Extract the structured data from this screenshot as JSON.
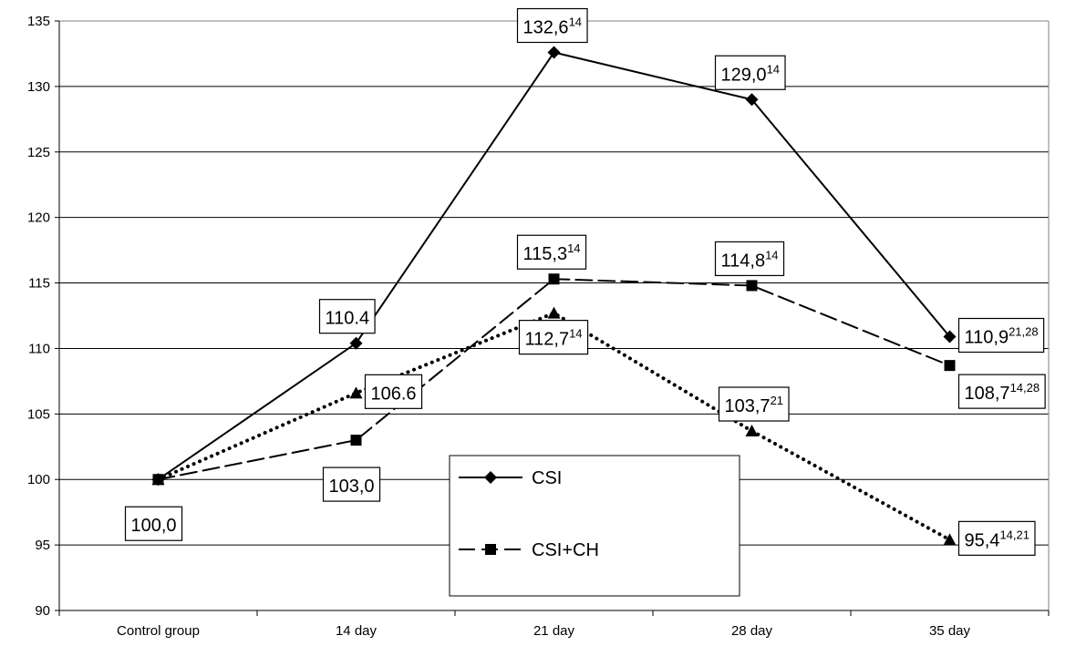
{
  "chart_data": {
    "type": "line",
    "categories": [
      "Control group",
      "14 day",
      "21 day",
      "28 day",
      "35 day"
    ],
    "ylim": [
      90,
      135
    ],
    "yticks": [
      90,
      95,
      100,
      105,
      110,
      115,
      120,
      125,
      130,
      135
    ],
    "grid": true,
    "legend_position": "center-bottom",
    "series": [
      {
        "name": "CSI",
        "style": "solid",
        "marker": "diamond",
        "values": [
          100.0,
          110.4,
          132.6,
          129.0,
          110.9
        ],
        "labels": [
          null,
          {
            "text": "110.4",
            "sup": ""
          },
          {
            "text": "132,6",
            "sup": "14"
          },
          {
            "text": "129,0",
            "sup": "14"
          },
          {
            "text": "110,9",
            "sup": "21,28"
          }
        ]
      },
      {
        "name": "CSI+CH",
        "style": "dashed",
        "marker": "square",
        "values": [
          100.0,
          103.0,
          115.3,
          114.8,
          108.7
        ],
        "labels": [
          {
            "text": "100,0",
            "sup": ""
          },
          {
            "text": "103,0",
            "sup": ""
          },
          {
            "text": "115,3",
            "sup": "14"
          },
          {
            "text": "114,8",
            "sup": "14"
          },
          {
            "text": "108,7",
            "sup": "14,28"
          }
        ]
      },
      {
        "style": "dotted",
        "marker": "triangle",
        "values": [
          100.0,
          106.6,
          112.7,
          103.7,
          95.4
        ],
        "labels": [
          null,
          {
            "text": "106.6",
            "sup": ""
          },
          {
            "text": "112,7",
            "sup": "14"
          },
          {
            "text": "103,7",
            "sup": "21"
          },
          {
            "text": "95,4",
            "sup": "14,21"
          }
        ]
      }
    ]
  }
}
